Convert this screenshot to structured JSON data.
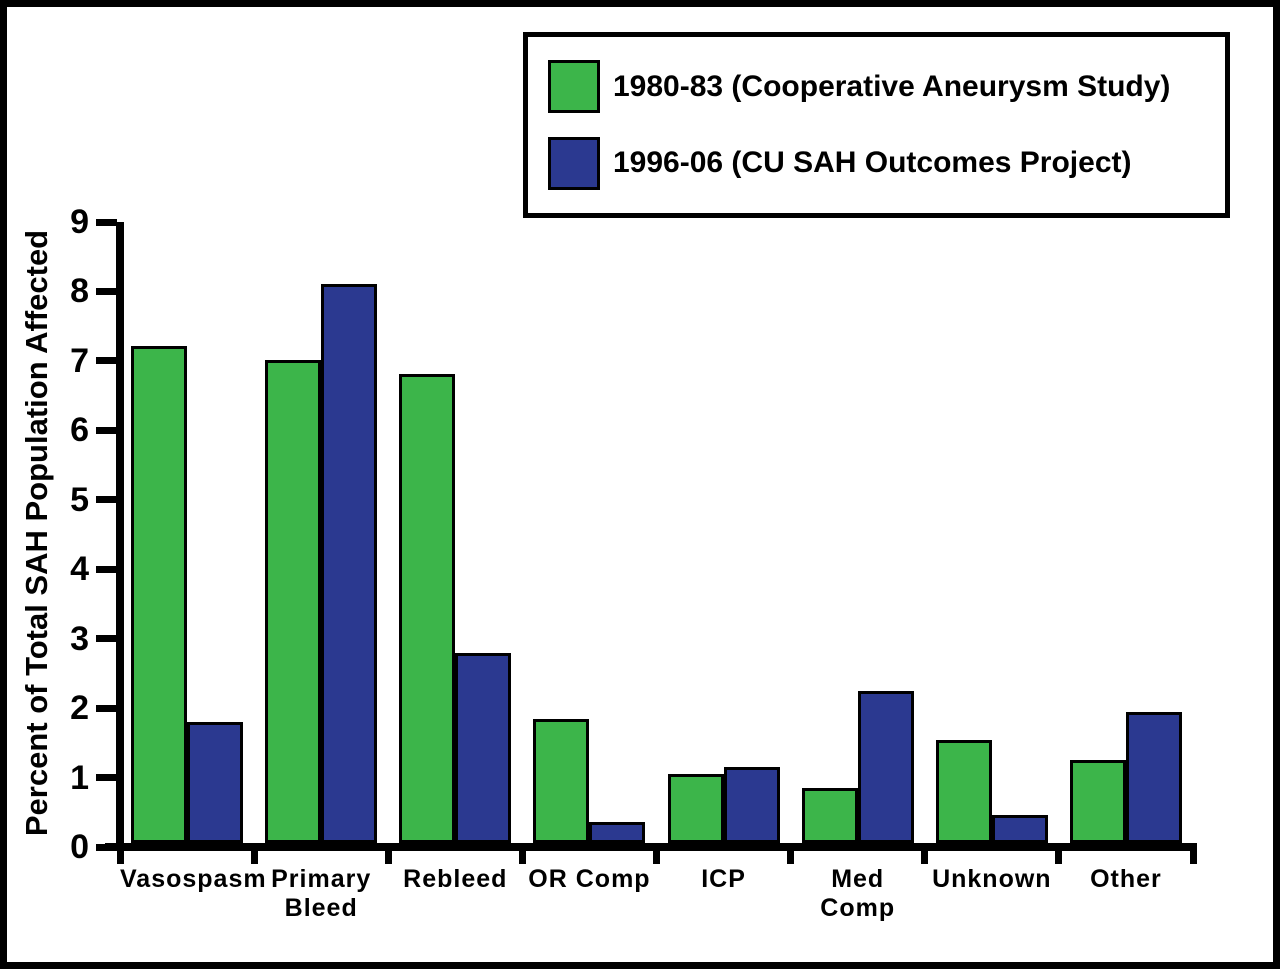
{
  "chart_data": {
    "type": "bar",
    "title": "",
    "xlabel": "",
    "ylabel": "Percent of Total SAH Population Affected",
    "ylim": [
      0,
      9
    ],
    "yticks": [
      0,
      1,
      2,
      3,
      4,
      5,
      6,
      7,
      8,
      9
    ],
    "grid": false,
    "legend_position": "top-right",
    "categories": [
      "Vasospasm",
      "Primary Bleed",
      "Rebleed",
      "OR Comp",
      "ICP",
      "Med Comp",
      "Unknown",
      "Other"
    ],
    "series": [
      {
        "name": "1980-83 (Cooperative Aneurysm Study)",
        "color": "#3CB54A",
        "values": [
          7.2,
          7.0,
          6.8,
          1.8,
          1.0,
          0.8,
          1.5,
          1.2
        ]
      },
      {
        "name": "1996-06 (CU SAH Outcomes Project)",
        "color": "#2B3990",
        "values": [
          1.75,
          8.1,
          2.75,
          0.3,
          1.1,
          2.2,
          0.4,
          1.9
        ]
      }
    ]
  },
  "colors": {
    "axis": "#000000",
    "background": "#FFFFFF",
    "frame_border": "#000000"
  }
}
